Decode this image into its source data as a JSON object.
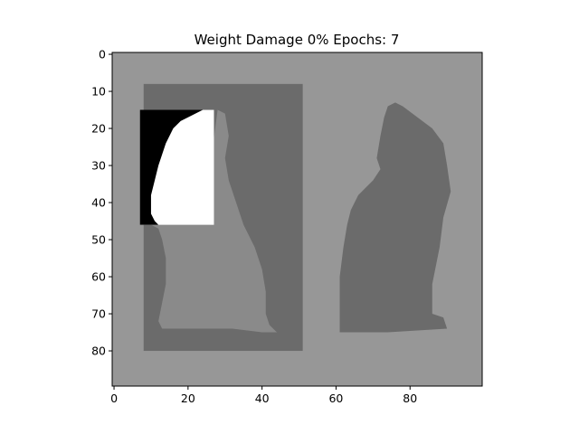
{
  "chart_data": {
    "type": "heatmap",
    "title": "Weight Damage 0% Epochs: 7",
    "xlabel": "",
    "ylabel": "",
    "xlim": [
      -0.5,
      99.5
    ],
    "ylim": [
      89.5,
      -0.5
    ],
    "xticks": [
      0,
      20,
      40,
      60,
      80
    ],
    "yticks": [
      0,
      10,
      20,
      30,
      40,
      50,
      60,
      70,
      80
    ],
    "xtick_labels": [
      "0",
      "20",
      "40",
      "60",
      "80"
    ],
    "ytick_labels": [
      "0",
      "10",
      "20",
      "30",
      "40",
      "50",
      "60",
      "70",
      "80"
    ],
    "grid": false,
    "colormap": "gray",
    "image_size": {
      "cols": 100,
      "rows": 90
    },
    "background_level": 0.6,
    "regions": [
      {
        "name": "left-darker-frame",
        "x": [
          8,
          51
        ],
        "y": [
          8,
          80
        ],
        "level": 0.42
      },
      {
        "name": "right-cat-silhouette",
        "x": [
          61,
          91
        ],
        "y": [
          13,
          75
        ],
        "level": 0.42
      },
      {
        "name": "white-patch",
        "x": [
          7,
          27
        ],
        "y": [
          15,
          46
        ],
        "level": 1.0
      },
      {
        "name": "black-corner",
        "x": [
          7,
          24
        ],
        "y": [
          15,
          46
        ],
        "level": 0.0
      }
    ]
  },
  "colors": {
    "frame": "#000000",
    "background": "#979797",
    "dark_region": "#6b6b6b",
    "mid_region": "#8a8a8a"
  }
}
